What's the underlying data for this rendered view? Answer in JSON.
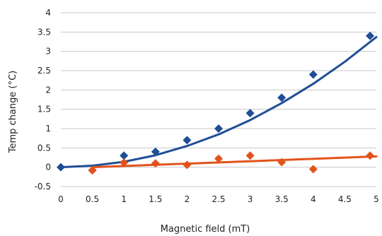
{
  "chart_data": {
    "type": "scatter",
    "xlabel": "Magnetic field (mT)",
    "ylabel": "Temp change (°C)",
    "xlim": [
      0,
      5
    ],
    "ylim": [
      -0.5,
      4
    ],
    "x_ticks": [
      "0",
      "0.5",
      "1",
      "1.5",
      "2",
      "2.5",
      "3",
      "3.5",
      "4",
      "4.5",
      "5"
    ],
    "y_ticks": [
      "-0.5",
      "0",
      "0.5",
      "1",
      "1.5",
      "2",
      "2.5",
      "3",
      "3.5",
      "4"
    ],
    "grid": "horizontal",
    "legend": "none",
    "series": [
      {
        "color": "#1f4e96",
        "marker": "diamond",
        "x": [
          0,
          0.5,
          1,
          1.5,
          2,
          2.5,
          3,
          3.5,
          4,
          4.9
        ],
        "y": [
          0,
          -0.08,
          0.3,
          0.4,
          0.7,
          1.0,
          1.4,
          1.8,
          2.4,
          3.4
        ],
        "trendline": {
          "type": "polynomial",
          "x": [
            0.0,
            0.5,
            1.0,
            1.5,
            2.0,
            2.5,
            3.0,
            3.5,
            4.0,
            4.5,
            5.0
          ],
          "y": [
            0.0,
            0.04,
            0.14,
            0.31,
            0.55,
            0.85,
            1.22,
            1.66,
            2.16,
            2.73,
            3.37
          ]
        }
      },
      {
        "color": "#e2531b",
        "marker": "diamond",
        "x": [
          0.5,
          1,
          1.5,
          2,
          2.5,
          3,
          3.5,
          4,
          4.9
        ],
        "y": [
          -0.08,
          0.12,
          0.1,
          0.06,
          0.22,
          0.3,
          0.13,
          -0.05,
          0.3
        ],
        "trendline": {
          "type": "linear",
          "x": [
            0.5,
            5.0
          ],
          "y": [
            0.0,
            0.28
          ]
        }
      }
    ]
  }
}
